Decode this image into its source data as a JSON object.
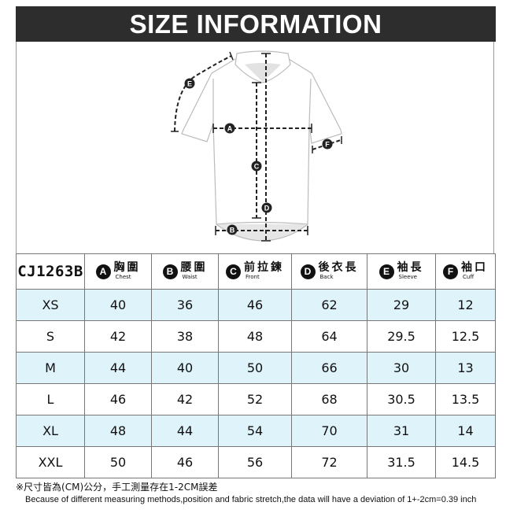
{
  "title": "SIZE INFORMATION",
  "diagram": {
    "markers": [
      "A",
      "B",
      "C",
      "D",
      "E",
      "F"
    ]
  },
  "table": {
    "model": "CJ1263B",
    "headers": [
      {
        "badge": "A",
        "zh": "胸圍",
        "en": "Chest"
      },
      {
        "badge": "B",
        "zh": "腰圍",
        "en": "Waist"
      },
      {
        "badge": "C",
        "zh": "前拉鍊",
        "en": "Front"
      },
      {
        "badge": "D",
        "zh": "後衣長",
        "en": "Back"
      },
      {
        "badge": "E",
        "zh": "袖長",
        "en": "Sleeve"
      },
      {
        "badge": "F",
        "zh": "袖口",
        "en": "Cuff"
      }
    ],
    "rows": [
      [
        "XS",
        "40",
        "36",
        "46",
        "62",
        "29",
        "12"
      ],
      [
        "S",
        "42",
        "38",
        "48",
        "64",
        "29.5",
        "12.5"
      ],
      [
        "M",
        "44",
        "40",
        "50",
        "66",
        "30",
        "13"
      ],
      [
        "L",
        "46",
        "42",
        "52",
        "68",
        "30.5",
        "13.5"
      ],
      [
        "XL",
        "48",
        "44",
        "54",
        "70",
        "31",
        "14"
      ],
      [
        "XXL",
        "50",
        "46",
        "56",
        "72",
        "31.5",
        "14.5"
      ]
    ],
    "row_highlight_color": "#dff3fb"
  },
  "notes": {
    "zh": "※尺寸皆為(CM)公分，手工測量存在1-2CM誤差",
    "en": "Because of different measuring methods,position and fabric stretch,the data will have a deviation of 1+-2cm=0.39 inch"
  }
}
